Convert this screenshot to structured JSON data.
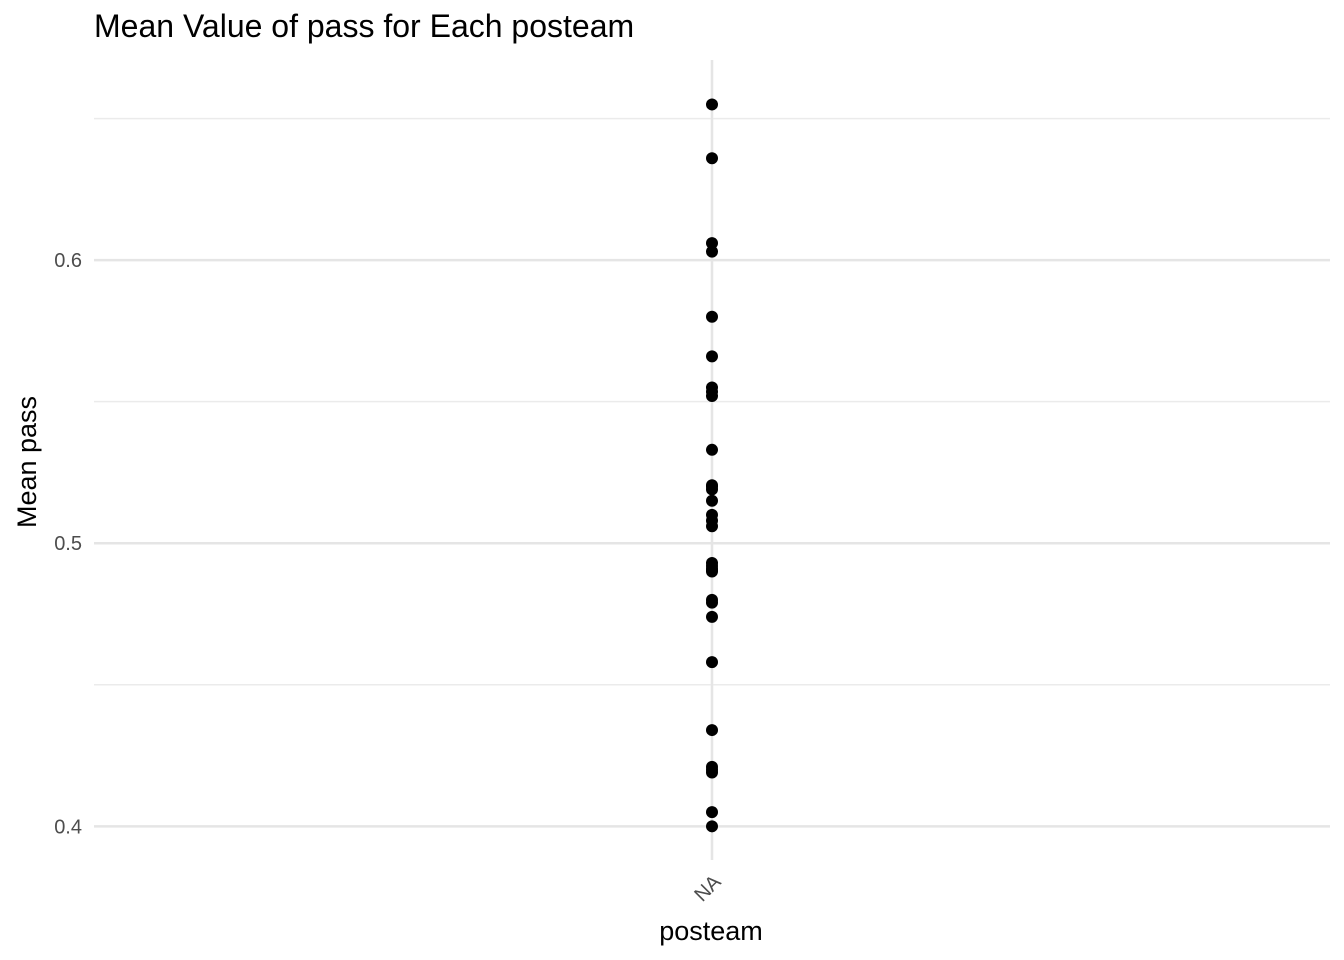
{
  "chart_data": {
    "type": "scatter",
    "title": "Mean Value of pass for Each posteam",
    "xlabel": "posteam",
    "ylabel": "Mean pass",
    "categories": [
      "NA"
    ],
    "ylim": [
      0.3881,
      0.6707
    ],
    "yticks": [
      0.4,
      0.5,
      0.6
    ],
    "ytick_labels": [
      "0.4",
      "0.5",
      "0.6"
    ],
    "minor_yticks": [
      0.45,
      0.55,
      0.65
    ],
    "grid": true,
    "legend": "none",
    "point_color": "#000000",
    "series": [
      {
        "x": [
          "NA",
          "NA",
          "NA",
          "NA",
          "NA",
          "NA",
          "NA",
          "NA",
          "NA",
          "NA",
          "NA",
          "NA",
          "NA",
          "NA",
          "NA",
          "NA",
          "NA",
          "NA",
          "NA",
          "NA",
          "NA",
          "NA",
          "NA",
          "NA",
          "NA",
          "NA",
          "NA",
          "NA",
          "NA",
          "NA",
          "NA",
          "NA"
        ],
        "values": [
          0.655,
          0.636,
          0.606,
          0.603,
          0.58,
          0.566,
          0.555,
          0.552,
          0.533,
          0.52,
          0.519,
          0.515,
          0.51,
          0.508,
          0.506,
          0.493,
          0.492,
          0.491,
          0.49,
          0.48,
          0.479,
          0.474,
          0.458,
          0.434,
          0.421,
          0.42,
          0.419,
          0.405,
          0.4,
          0.4905,
          0.5205,
          0.5535
        ]
      }
    ]
  }
}
